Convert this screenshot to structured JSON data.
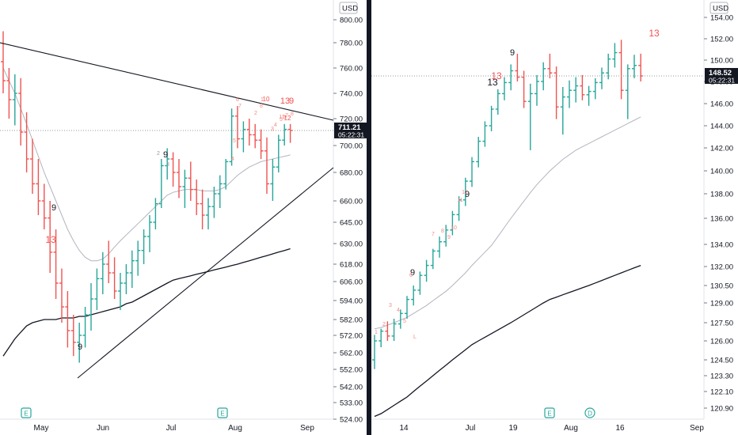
{
  "colors": {
    "up": "#26a69a",
    "down": "#ef5350",
    "neutral": "#131722",
    "ma_fast": "#b2b5be",
    "ma_slow": "#131722",
    "seq_label": "#ef5350",
    "seq_label_black": "#131722",
    "price_line": "#9598a1",
    "event_badge": "#26a69a"
  },
  "chart_data": [
    {
      "type": "ohlc",
      "currency_label": "USD",
      "ylim": [
        524,
        815
      ],
      "y_ticks": [
        "800.00",
        "780.00",
        "760.00",
        "740.00",
        "720.00",
        "700.00",
        "680.00",
        "660.00",
        "645.00",
        "630.00",
        "618.00",
        "606.00",
        "594.00",
        "582.00",
        "572.00",
        "562.00",
        "552.00",
        "542.00",
        "533.00",
        "524.00"
      ],
      "x_labels": [
        "May",
        "Jun",
        "Jul",
        "Aug",
        "Sep"
      ],
      "last_price": "711.21",
      "countdown": "05:22:31",
      "event_badges": [
        "E",
        "E"
      ],
      "sequence_labels": [
        "9",
        "13",
        "9",
        "9",
        "9",
        "13",
        "10",
        "12"
      ],
      "sequence_small": [
        "2",
        "3",
        "4",
        "5",
        "6",
        "7",
        "8",
        "1",
        "2",
        "3",
        "4",
        "5",
        "6",
        "7",
        "8",
        "11"
      ],
      "bars": [
        [
          765,
          790,
          740,
          750
        ],
        [
          750,
          760,
          720,
          735
        ],
        [
          735,
          755,
          715,
          740
        ],
        [
          740,
          752,
          700,
          710
        ],
        [
          710,
          725,
          680,
          690
        ],
        [
          690,
          705,
          665,
          672
        ],
        [
          672,
          690,
          650,
          660
        ],
        [
          660,
          672,
          640,
          648
        ],
        [
          648,
          660,
          612,
          625
        ],
        [
          625,
          640,
          595,
          605
        ],
        [
          605,
          615,
          580,
          590
        ],
        [
          590,
          600,
          565,
          575
        ],
        [
          575,
          585,
          560,
          568
        ],
        [
          568,
          580,
          556,
          572
        ],
        [
          572,
          590,
          565,
          585
        ],
        [
          585,
          605,
          575,
          595
        ],
        [
          595,
          615,
          588,
          608
        ],
        [
          608,
          625,
          598,
          618
        ],
        [
          618,
          632,
          605,
          612
        ],
        [
          612,
          622,
          595,
          600
        ],
        [
          600,
          612,
          588,
          605
        ],
        [
          605,
          618,
          598,
          612
        ],
        [
          612,
          626,
          602,
          620
        ],
        [
          620,
          632,
          610,
          626
        ],
        [
          626,
          640,
          618,
          635
        ],
        [
          635,
          650,
          625,
          645
        ],
        [
          645,
          662,
          640,
          658
        ],
        [
          658,
          690,
          655,
          685
        ],
        [
          685,
          698,
          675,
          690
        ],
        [
          690,
          695,
          670,
          680
        ],
        [
          680,
          690,
          662,
          670
        ],
        [
          670,
          682,
          655,
          676
        ],
        [
          676,
          688,
          660,
          668
        ],
        [
          668,
          675,
          650,
          658
        ],
        [
          658,
          668,
          640,
          650
        ],
        [
          650,
          662,
          640,
          656
        ],
        [
          656,
          670,
          648,
          665
        ],
        [
          665,
          678,
          655,
          672
        ],
        [
          672,
          690,
          668,
          688
        ],
        [
          688,
          728,
          685,
          722
        ],
        [
          722,
          730,
          698,
          705
        ],
        [
          705,
          718,
          695,
          712
        ],
        [
          712,
          720,
          700,
          708
        ],
        [
          708,
          716,
          698,
          704
        ],
        [
          704,
          712,
          690,
          696
        ],
        [
          696,
          706,
          665,
          672
        ],
        [
          672,
          690,
          660,
          684
        ],
        [
          684,
          708,
          680,
          704
        ],
        [
          704,
          716,
          700,
          712
        ],
        [
          712,
          716,
          702,
          711.21
        ]
      ],
      "ma_fast": [
        760,
        750,
        740,
        728,
        716,
        704,
        692,
        680,
        670,
        660,
        650,
        640,
        632,
        626,
        622,
        620,
        620,
        621,
        624,
        628,
        632,
        636,
        640,
        644,
        648,
        652,
        656,
        660,
        664,
        666,
        667,
        668,
        668,
        668,
        667,
        667,
        667,
        668,
        670,
        674,
        678,
        681,
        684,
        686,
        688,
        689,
        690,
        691,
        692,
        693
      ],
      "ma_slow": [
        560,
        565,
        570,
        574,
        578,
        580,
        581,
        582,
        582,
        582,
        583,
        583,
        583,
        584,
        584,
        585,
        586,
        587,
        588,
        589,
        590,
        592,
        593,
        595,
        597,
        599,
        601,
        603,
        605,
        607,
        608,
        609,
        610,
        611,
        612,
        613,
        614,
        615,
        616,
        617,
        618,
        619,
        620,
        621,
        622,
        623,
        624,
        625,
        626,
        627
      ]
    },
    {
      "type": "ohlc",
      "currency_label": "USD",
      "ylim": [
        120.2,
        154.8
      ],
      "y_ticks": [
        "154.00",
        "152.00",
        "150.00",
        "148.00",
        "146.00",
        "144.00",
        "142.00",
        "140.00",
        "138.00",
        "136.00",
        "134.00",
        "132.00",
        "130.50",
        "129.00",
        "127.50",
        "126.00",
        "124.50",
        "123.30",
        "122.10",
        "120.90"
      ],
      "x_labels": [
        "14",
        "Jul",
        "19",
        "Aug",
        "16",
        "Sep"
      ],
      "last_price": "148.52",
      "countdown": "05:22:31",
      "event_badges": [
        "E",
        "D"
      ],
      "sequence_labels": [
        "9",
        "9",
        "9",
        "13",
        "13",
        "13"
      ],
      "sequence_small": [
        "1",
        "2",
        "3",
        "4",
        "5",
        "6",
        "7",
        "8",
        "9",
        "10",
        "11",
        "12",
        "L"
      ],
      "bars": [
        [
          124.5,
          126.5,
          123.8,
          126.0
        ],
        [
          126.0,
          127.0,
          125.5,
          126.8
        ],
        [
          126.8,
          127.6,
          126.0,
          126.4
        ],
        [
          126.4,
          127.8,
          126.0,
          127.4
        ],
        [
          127.4,
          128.5,
          127.0,
          128.2
        ],
        [
          128.2,
          129.6,
          127.8,
          129.3
        ],
        [
          129.3,
          130.5,
          128.8,
          130.1
        ],
        [
          130.1,
          131.6,
          129.7,
          131.3
        ],
        [
          131.3,
          132.6,
          130.8,
          132.1
        ],
        [
          132.1,
          133.6,
          131.8,
          133.4
        ],
        [
          133.4,
          134.6,
          132.8,
          134.2
        ],
        [
          134.2,
          135.5,
          133.8,
          135.1
        ],
        [
          135.1,
          136.6,
          134.7,
          136.3
        ],
        [
          136.3,
          137.8,
          135.8,
          137.5
        ],
        [
          137.5,
          139.4,
          137.0,
          139.1
        ],
        [
          139.1,
          141.2,
          138.6,
          140.8
        ],
        [
          140.8,
          143.0,
          140.3,
          142.6
        ],
        [
          142.6,
          144.4,
          142.1,
          144.0
        ],
        [
          144.0,
          145.8,
          143.5,
          145.5
        ],
        [
          145.5,
          147.3,
          145.0,
          146.9
        ],
        [
          146.9,
          148.4,
          146.3,
          147.9
        ],
        [
          147.9,
          149.6,
          147.2,
          149.0
        ],
        [
          149.0,
          150.6,
          148.0,
          148.4
        ],
        [
          148.4,
          149.0,
          145.6,
          146.2
        ],
        [
          146.2,
          147.8,
          141.8,
          146.9
        ],
        [
          146.9,
          148.6,
          145.8,
          148.0
        ],
        [
          148.0,
          149.8,
          147.2,
          149.2
        ],
        [
          149.2,
          150.6,
          148.3,
          148.8
        ],
        [
          148.8,
          149.4,
          144.6,
          145.7
        ],
        [
          145.7,
          147.5,
          143.2,
          146.6
        ],
        [
          146.6,
          148.1,
          145.6,
          147.2
        ],
        [
          147.2,
          148.4,
          146.1,
          147.6
        ],
        [
          147.6,
          148.6,
          146.3,
          146.8
        ],
        [
          146.8,
          147.6,
          145.8,
          147.1
        ],
        [
          147.1,
          148.3,
          146.4,
          147.9
        ],
        [
          147.9,
          149.3,
          147.3,
          148.8
        ],
        [
          148.8,
          150.6,
          148.2,
          150.1
        ],
        [
          150.1,
          151.6,
          149.3,
          150.7
        ],
        [
          150.7,
          151.9,
          146.4,
          147.2
        ],
        [
          147.2,
          149.6,
          144.6,
          149.2
        ],
        [
          149.2,
          150.5,
          148.3,
          149.5
        ],
        [
          149.5,
          150.6,
          148.0,
          148.52
        ]
      ],
      "ma_fast": [
        127.0,
        127.1,
        127.3,
        127.5,
        127.7,
        127.9,
        128.2,
        128.5,
        128.8,
        129.2,
        129.6,
        130.0,
        130.5,
        131.0,
        131.5,
        132.1,
        132.7,
        133.3,
        133.9,
        134.6,
        135.3,
        136.0,
        136.7,
        137.4,
        138.1,
        138.8,
        139.4,
        140.0,
        140.5,
        141.0,
        141.4,
        141.8,
        142.1,
        142.4,
        142.7,
        143.0,
        143.3,
        143.6,
        143.9,
        144.2,
        144.5,
        144.8
      ],
      "ma_slow": [
        120.3,
        120.5,
        120.8,
        121.1,
        121.4,
        121.7,
        122.1,
        122.5,
        122.9,
        123.3,
        123.7,
        124.1,
        124.5,
        124.9,
        125.3,
        125.7,
        126.0,
        126.3,
        126.6,
        126.9,
        127.2,
        127.5,
        127.8,
        128.1,
        128.4,
        128.7,
        129.0,
        129.3,
        129.5,
        129.7,
        129.9,
        130.1,
        130.3,
        130.5,
        130.7,
        130.9,
        131.1,
        131.3,
        131.5,
        131.7,
        131.9,
        132.1
      ]
    }
  ]
}
